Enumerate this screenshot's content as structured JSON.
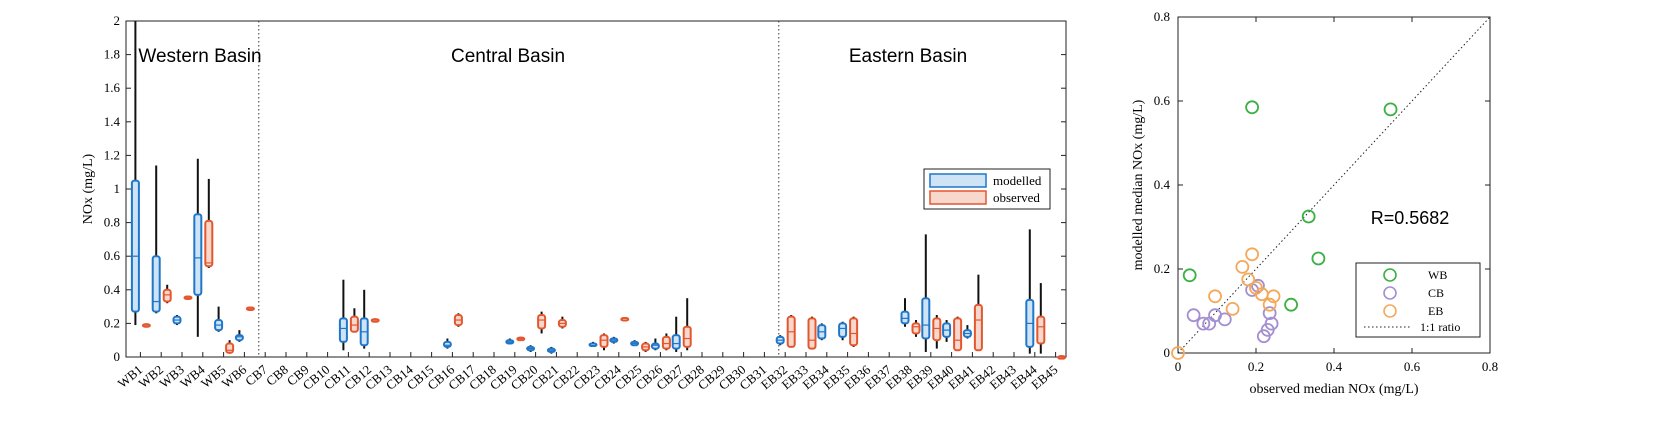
{
  "chart_data": [
    {
      "type": "box",
      "ylabel": "NOx (mg/L)",
      "ylim": [
        0,
        2
      ],
      "yticks": [
        "0",
        "0.2",
        "0.4",
        "0.6",
        "0.8",
        "1",
        "1.2",
        "1.4",
        "1.6",
        "1.8",
        "2"
      ],
      "categories": [
        "WB1",
        "WB2",
        "WB3",
        "WB4",
        "WB5",
        "WB6",
        "CB7",
        "CB8",
        "CB9",
        "CB10",
        "CB11",
        "CB12",
        "CB13",
        "CB14",
        "CB15",
        "CB16",
        "CB17",
        "CB18",
        "CB19",
        "CB20",
        "CB21",
        "CB22",
        "CB23",
        "CB24",
        "CB25",
        "CB26",
        "CB27",
        "CB28",
        "CB29",
        "CB30",
        "CB31",
        "EB32",
        "EB33",
        "EB34",
        "EB35",
        "EB36",
        "EB37",
        "EB38",
        "EB39",
        "EB40",
        "EB41",
        "EB42",
        "EB43",
        "EB44",
        "EB45"
      ],
      "regions": [
        "Western Basin",
        "Central Basin",
        "Eastern Basin"
      ],
      "legend": [
        "modelled",
        "observed"
      ],
      "colors": {
        "modelled": "#1f77c9",
        "observed": "#e4572e",
        "modelled_fill": "#cfe3f6",
        "observed_fill": "#f8d8cc"
      },
      "modelled": [
        {
          "i": 0,
          "min": 0.19,
          "q1": 0.27,
          "med": 0.6,
          "q3": 1.05,
          "max": 2.0
        },
        {
          "i": 1,
          "min": 0.26,
          "q1": 0.27,
          "med": 0.33,
          "q3": 0.6,
          "max": 1.14
        },
        {
          "i": 2,
          "min": 0.19,
          "q1": 0.2,
          "med": 0.22,
          "q3": 0.24,
          "max": 0.25
        },
        {
          "i": 3,
          "min": 0.12,
          "q1": 0.37,
          "med": 0.59,
          "q3": 0.85,
          "max": 1.18
        },
        {
          "i": 4,
          "min": 0.15,
          "q1": 0.16,
          "med": 0.19,
          "q3": 0.22,
          "max": 0.3
        },
        {
          "i": 5,
          "min": 0.09,
          "q1": 0.1,
          "med": 0.12,
          "q3": 0.13,
          "max": 0.16
        },
        {
          "i": 10,
          "min": 0.04,
          "q1": 0.09,
          "med": 0.17,
          "q3": 0.23,
          "max": 0.46
        },
        {
          "i": 11,
          "min": 0.05,
          "q1": 0.07,
          "med": 0.15,
          "q3": 0.23,
          "max": 0.4
        },
        {
          "i": 15,
          "min": 0.05,
          "q1": 0.06,
          "med": 0.07,
          "q3": 0.09,
          "max": 0.11
        },
        {
          "i": 18,
          "min": 0.08,
          "q1": 0.08,
          "med": 0.09,
          "q3": 0.1,
          "max": 0.11
        },
        {
          "i": 19,
          "min": 0.03,
          "q1": 0.04,
          "med": 0.05,
          "q3": 0.06,
          "max": 0.07
        },
        {
          "i": 20,
          "min": 0.02,
          "q1": 0.03,
          "med": 0.04,
          "q3": 0.05,
          "max": 0.06
        },
        {
          "i": 22,
          "min": 0.07,
          "q1": 0.07,
          "med": 0.08,
          "q3": 0.08,
          "max": 0.09
        },
        {
          "i": 23,
          "min": 0.08,
          "q1": 0.09,
          "med": 0.1,
          "q3": 0.11,
          "max": 0.12
        },
        {
          "i": 24,
          "min": 0.07,
          "q1": 0.07,
          "med": 0.08,
          "q3": 0.09,
          "max": 0.1
        },
        {
          "i": 25,
          "min": 0.04,
          "q1": 0.05,
          "med": 0.07,
          "q3": 0.08,
          "max": 0.11
        },
        {
          "i": 26,
          "min": 0.03,
          "q1": 0.05,
          "med": 0.08,
          "q3": 0.13,
          "max": 0.24
        },
        {
          "i": 31,
          "min": 0.07,
          "q1": 0.08,
          "med": 0.1,
          "q3": 0.12,
          "max": 0.13
        },
        {
          "i": 33,
          "min": 0.1,
          "q1": 0.11,
          "med": 0.15,
          "q3": 0.19,
          "max": 0.2
        },
        {
          "i": 34,
          "min": 0.1,
          "q1": 0.12,
          "med": 0.17,
          "q3": 0.2,
          "max": 0.21
        },
        {
          "i": 37,
          "min": 0.18,
          "q1": 0.2,
          "med": 0.23,
          "q3": 0.27,
          "max": 0.35
        },
        {
          "i": 38,
          "min": 0.03,
          "q1": 0.11,
          "med": 0.19,
          "q3": 0.35,
          "max": 0.73
        },
        {
          "i": 39,
          "min": 0.09,
          "q1": 0.12,
          "med": 0.16,
          "q3": 0.2,
          "max": 0.22
        },
        {
          "i": 40,
          "min": 0.11,
          "q1": 0.12,
          "med": 0.14,
          "q3": 0.16,
          "max": 0.19
        },
        {
          "i": 43,
          "min": 0.02,
          "q1": 0.06,
          "med": 0.2,
          "q3": 0.34,
          "max": 0.76
        }
      ],
      "observed": [
        {
          "i": 0,
          "min": 0.18,
          "q1": 0.185,
          "med": 0.19,
          "q3": 0.195,
          "max": 0.2
        },
        {
          "i": 1,
          "min": 0.32,
          "q1": 0.33,
          "med": 0.37,
          "q3": 0.4,
          "max": 0.43
        },
        {
          "i": 2,
          "min": 0.345,
          "q1": 0.35,
          "med": 0.355,
          "q3": 0.36,
          "max": 0.365
        },
        {
          "i": 3,
          "min": 0.53,
          "q1": 0.54,
          "med": 0.56,
          "q3": 0.81,
          "max": 1.06
        },
        {
          "i": 4,
          "min": 0.02,
          "q1": 0.025,
          "med": 0.04,
          "q3": 0.08,
          "max": 0.1
        },
        {
          "i": 5,
          "min": 0.28,
          "q1": 0.285,
          "med": 0.29,
          "q3": 0.295,
          "max": 0.3
        },
        {
          "i": 10,
          "min": 0.15,
          "q1": 0.15,
          "med": 0.19,
          "q3": 0.24,
          "max": 0.29
        },
        {
          "i": 11,
          "min": 0.21,
          "q1": 0.215,
          "med": 0.22,
          "q3": 0.225,
          "max": 0.23
        },
        {
          "i": 15,
          "min": 0.18,
          "q1": 0.19,
          "med": 0.22,
          "q3": 0.25,
          "max": 0.26
        },
        {
          "i": 18,
          "min": 0.1,
          "q1": 0.105,
          "med": 0.11,
          "q3": 0.115,
          "max": 0.12
        },
        {
          "i": 19,
          "min": 0.14,
          "q1": 0.17,
          "med": 0.22,
          "q3": 0.25,
          "max": 0.27
        },
        {
          "i": 20,
          "min": 0.17,
          "q1": 0.18,
          "med": 0.2,
          "q3": 0.22,
          "max": 0.24
        },
        {
          "i": 22,
          "min": 0.04,
          "q1": 0.06,
          "med": 0.1,
          "q3": 0.13,
          "max": 0.14
        },
        {
          "i": 23,
          "min": 0.225,
          "q1": 0.228,
          "med": 0.23,
          "q3": 0.232,
          "max": 0.235
        },
        {
          "i": 24,
          "min": 0.03,
          "q1": 0.04,
          "med": 0.06,
          "q3": 0.08,
          "max": 0.09
        },
        {
          "i": 25,
          "min": 0.04,
          "q1": 0.05,
          "med": 0.08,
          "q3": 0.12,
          "max": 0.14
        },
        {
          "i": 26,
          "min": 0.04,
          "q1": 0.06,
          "med": 0.11,
          "q3": 0.18,
          "max": 0.35
        },
        {
          "i": 31,
          "min": 0.06,
          "q1": 0.06,
          "med": 0.15,
          "q3": 0.24,
          "max": 0.25
        },
        {
          "i": 32,
          "min": 0.05,
          "q1": 0.05,
          "med": 0.1,
          "q3": 0.23,
          "max": 0.24
        },
        {
          "i": 34,
          "min": 0.06,
          "q1": 0.07,
          "med": 0.14,
          "q3": 0.23,
          "max": 0.24
        },
        {
          "i": 37,
          "min": 0.12,
          "q1": 0.14,
          "med": 0.18,
          "q3": 0.2,
          "max": 0.22
        },
        {
          "i": 38,
          "min": 0.05,
          "q1": 0.1,
          "med": 0.17,
          "q3": 0.23,
          "max": 0.25
        },
        {
          "i": 39,
          "min": 0.04,
          "q1": 0.04,
          "med": 0.1,
          "q3": 0.23,
          "max": 0.24
        },
        {
          "i": 40,
          "min": 0.04,
          "q1": 0.04,
          "med": 0.22,
          "q3": 0.31,
          "max": 0.49
        },
        {
          "i": 43,
          "min": 0.02,
          "q1": 0.08,
          "med": 0.18,
          "q3": 0.24,
          "max": 0.44
        },
        {
          "i": 44,
          "min": 0.0,
          "q1": 0.0,
          "med": 0.0,
          "q3": 0.005,
          "max": 0.01
        }
      ]
    },
    {
      "type": "scatter",
      "xlabel": "observed median NOx (mg/L)",
      "ylabel": "modelled median NOx (mg/L)",
      "xlim": [
        0,
        0.8
      ],
      "ylim": [
        0,
        0.8
      ],
      "xticks": [
        "0",
        "0.2",
        "0.4",
        "0.6",
        "0.8"
      ],
      "yticks": [
        "0",
        "0.2",
        "0.4",
        "0.6",
        "0.8"
      ],
      "annotation": "R=0.5682",
      "legend": [
        "WB",
        "CB",
        "EB",
        "1:1 ratio"
      ],
      "series": [
        {
          "name": "WB",
          "color": "#3cb043",
          "points": [
            [
              0.03,
              0.185
            ],
            [
              0.19,
              0.585
            ],
            [
              0.29,
              0.115
            ],
            [
              0.335,
              0.325
            ],
            [
              0.36,
              0.225
            ],
            [
              0.545,
              0.58
            ]
          ]
        },
        {
          "name": "CB",
          "color": "#a48fd1",
          "points": [
            [
              0.04,
              0.09
            ],
            [
              0.065,
              0.07
            ],
            [
              0.08,
              0.07
            ],
            [
              0.095,
              0.09
            ],
            [
              0.12,
              0.08
            ],
            [
              0.19,
              0.15
            ],
            [
              0.205,
              0.16
            ],
            [
              0.22,
              0.04
            ],
            [
              0.23,
              0.055
            ],
            [
              0.24,
              0.07
            ],
            [
              0.235,
              0.095
            ]
          ]
        },
        {
          "name": "EB",
          "color": "#f4a95a",
          "points": [
            [
              0.0,
              0.0
            ],
            [
              0.095,
              0.135
            ],
            [
              0.14,
              0.105
            ],
            [
              0.165,
              0.205
            ],
            [
              0.18,
              0.175
            ],
            [
              0.19,
              0.235
            ],
            [
              0.2,
              0.155
            ],
            [
              0.215,
              0.14
            ],
            [
              0.235,
              0.115
            ],
            [
              0.245,
              0.135
            ]
          ]
        }
      ]
    }
  ]
}
